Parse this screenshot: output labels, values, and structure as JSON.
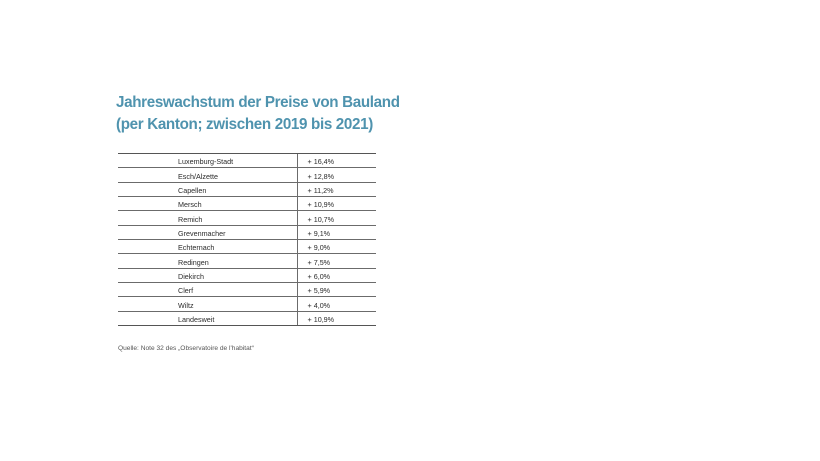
{
  "title": {
    "line1": "Jahreswachstum der Preise von Bauland",
    "line2": "(per Kanton; zwischen 2019 bis 2021)"
  },
  "table": {
    "rows": [
      {
        "canton": "Luxemburg-Stadt",
        "value": "+ 16,4%"
      },
      {
        "canton": "Esch/Alzette",
        "value": "+ 12,8%"
      },
      {
        "canton": "Capellen",
        "value": "+ 11,2%"
      },
      {
        "canton": "Mersch",
        "value": "+ 10,9%"
      },
      {
        "canton": "Remich",
        "value": "+ 10,7%"
      },
      {
        "canton": "Grevenmacher",
        "value": "+ 9,1%"
      },
      {
        "canton": "Echternach",
        "value": "+ 9,0%"
      },
      {
        "canton": "Redingen",
        "value": "+ 7,5%"
      },
      {
        "canton": "Diekirch",
        "value": "+ 6,0%"
      },
      {
        "canton": "Clerf",
        "value": "+ 5,9%"
      },
      {
        "canton": "Wiltz",
        "value": "+ 4,0%"
      },
      {
        "canton": "Landesweit",
        "value": "+ 10,9%"
      }
    ]
  },
  "source": "Quelle: Note 32 des „Observatoire de l'habitat“"
}
